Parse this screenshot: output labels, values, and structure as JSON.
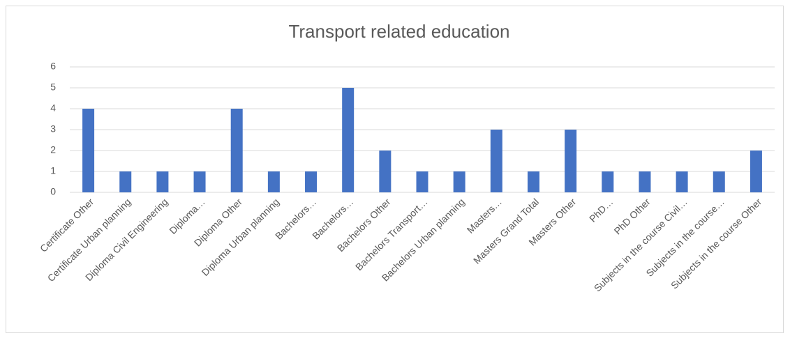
{
  "chart_data": {
    "type": "bar",
    "title": "Transport related education",
    "categories": [
      "Certificate Other",
      "Certificate Urban planning",
      "Diploma Civil Engineering",
      "Diploma…",
      "Diploma Other",
      "Diploma Urban planning",
      "Bachelors…",
      "Bachelors…",
      "Bachelors Other",
      "Bachelors Transport…",
      "Bachelors Urban planning",
      "Masters…",
      "Masters Grand Total",
      "Masters Other",
      "PhD…",
      "PhD Other",
      "Subjects in the course Civil…",
      "Subjects in the course…",
      "Subjects in the course Other"
    ],
    "values": [
      4,
      1,
      1,
      1,
      4,
      1,
      1,
      5,
      2,
      1,
      1,
      3,
      1,
      3,
      1,
      1,
      1,
      1,
      2
    ],
    "color": "#4472c4",
    "ylim": [
      0,
      6
    ],
    "yticks": [
      0,
      1,
      2,
      3,
      4,
      5,
      6
    ],
    "grid": true
  }
}
